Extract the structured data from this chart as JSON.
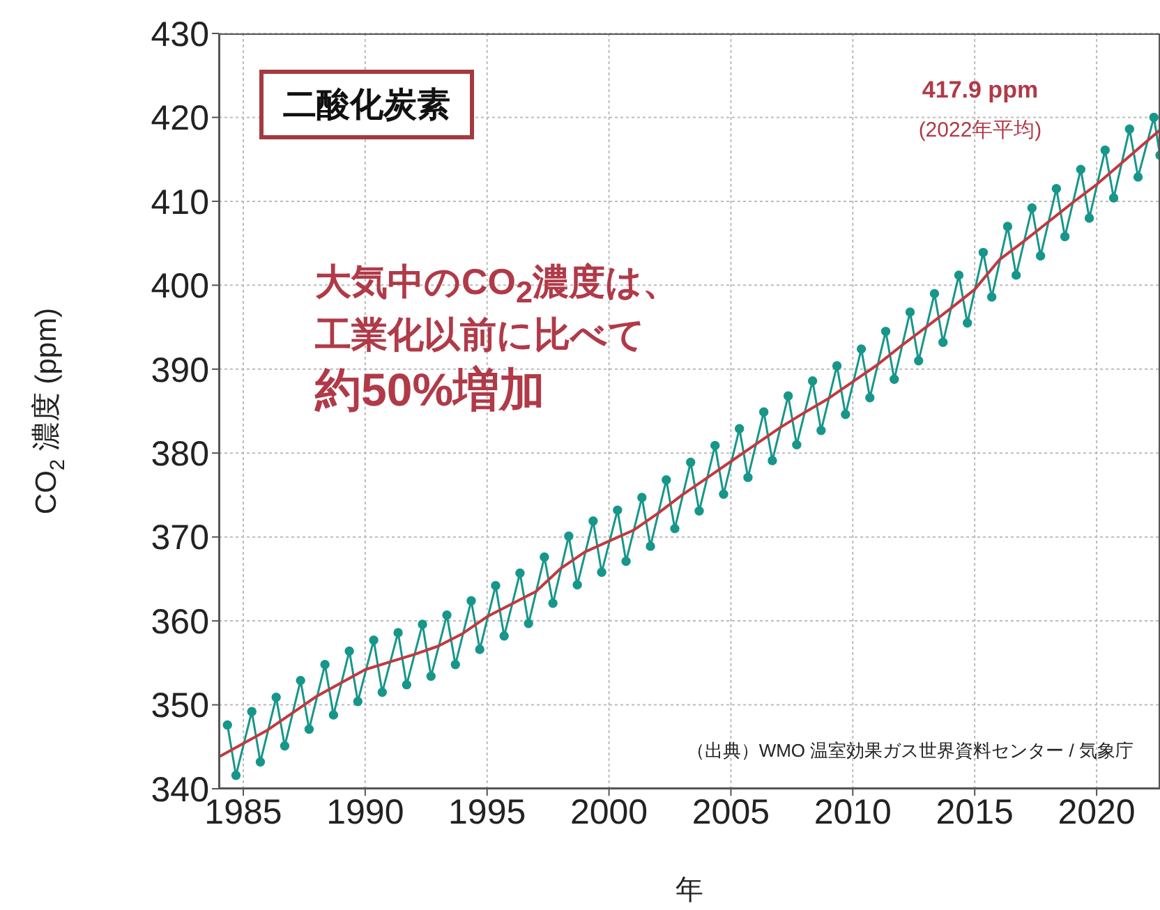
{
  "chart_data": {
    "type": "line",
    "title": "二酸化炭素",
    "xlabel": "年",
    "ylabel": "CO$_{2}$ 濃度 (ppm)",
    "annotations": [
      "417.9 ppm",
      "(2022年平均)",
      "大気中のCO$_{2}$濃度は、",
      "工業化以前に比べて",
      "約50%増加",
      "（出典）WMO 温室効果ガス世界資料センター / 気象庁"
    ],
    "xlim": [
      1984,
      2022.6
    ],
    "xticks": [
      1985,
      1990,
      1995,
      2000,
      2005,
      2010,
      2015,
      2020
    ],
    "ylim": [
      340,
      430
    ],
    "yticks": [
      340,
      350,
      360,
      370,
      380,
      390,
      400,
      410,
      420,
      430
    ],
    "grid": true,
    "marker": "circle",
    "line_style": "solid",
    "series": [
      {
        "color": "#17968a",
        "x": [
          1984.35,
          1984.7,
          1985.35,
          1985.7,
          1986.35,
          1986.7,
          1987.35,
          1987.7,
          1988.35,
          1988.7,
          1989.35,
          1989.7,
          1990.35,
          1990.7,
          1991.35,
          1991.7,
          1992.35,
          1992.7,
          1993.35,
          1993.7,
          1994.35,
          1994.7,
          1995.35,
          1995.7,
          1996.35,
          1996.7,
          1997.35,
          1997.7,
          1998.35,
          1998.7,
          1999.35,
          1999.7,
          2000.35,
          2000.7,
          2001.35,
          2001.7,
          2002.35,
          2002.7,
          2003.35,
          2003.7,
          2004.35,
          2004.7,
          2005.35,
          2005.7,
          2006.35,
          2006.7,
          2007.35,
          2007.7,
          2008.35,
          2008.7,
          2009.35,
          2009.7,
          2010.35,
          2010.7,
          2011.35,
          2011.7,
          2012.35,
          2012.7,
          2013.35,
          2013.7,
          2014.35,
          2014.7,
          2015.35,
          2015.7,
          2016.35,
          2016.7,
          2017.35,
          2017.7,
          2018.35,
          2018.7,
          2019.35,
          2019.7,
          2020.35,
          2020.7,
          2021.35,
          2021.7,
          2022.35,
          2022.6
        ],
        "values": [
          347.6,
          341.6,
          349.2,
          343.2,
          350.9,
          345.1,
          352.9,
          347.1,
          354.8,
          348.8,
          356.4,
          350.4,
          357.7,
          351.5,
          358.6,
          352.4,
          359.6,
          353.4,
          360.7,
          354.8,
          362.4,
          356.6,
          364.2,
          358.2,
          365.7,
          359.7,
          367.6,
          362.1,
          370.1,
          364.3,
          371.9,
          365.8,
          373.2,
          367.1,
          374.7,
          368.9,
          376.8,
          371.0,
          378.9,
          373.1,
          380.9,
          375.1,
          382.9,
          377.1,
          384.9,
          379.1,
          386.8,
          381.0,
          388.6,
          382.7,
          390.4,
          384.6,
          392.4,
          386.6,
          394.5,
          388.8,
          396.8,
          391.0,
          399.0,
          393.2,
          401.2,
          395.5,
          403.9,
          398.6,
          407.0,
          401.2,
          409.2,
          403.5,
          411.5,
          405.8,
          413.8,
          408.0,
          416.1,
          410.4,
          418.6,
          412.9,
          420.0,
          415.5
        ]
      },
      {
        "color": "#c0393f",
        "marker": "none",
        "x": [
          1984,
          1985,
          1986,
          1987,
          1988,
          1989,
          1990,
          1991,
          1992,
          1993,
          1994,
          1995,
          1996,
          1997,
          1998,
          1999,
          2000,
          2001,
          2002,
          2003,
          2004,
          2005,
          2006,
          2007,
          2008,
          2009,
          2010,
          2011,
          2012,
          2013,
          2014,
          2015,
          2016,
          2017,
          2018,
          2019,
          2020,
          2021,
          2022,
          2022.6
        ],
        "values": [
          343.8,
          345.4,
          347.0,
          349.0,
          351.0,
          352.6,
          354.2,
          355.1,
          356.0,
          357.0,
          358.5,
          360.5,
          362.0,
          363.5,
          366.2,
          368.2,
          369.5,
          370.8,
          372.8,
          375.0,
          377.0,
          379.0,
          381.0,
          383.0,
          384.8,
          386.5,
          388.5,
          390.5,
          392.8,
          395.0,
          397.2,
          399.5,
          403.0,
          405.2,
          407.5,
          409.8,
          412.0,
          414.5,
          417.0,
          418.5
        ]
      }
    ]
  }
}
